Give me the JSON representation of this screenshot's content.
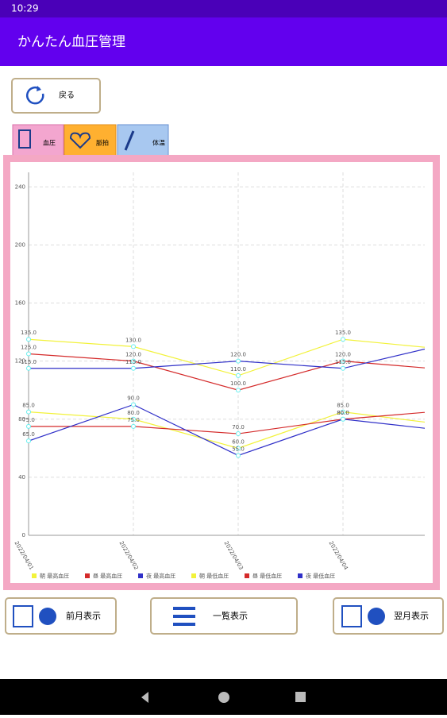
{
  "status_bar": {
    "time": "10:29"
  },
  "app_bar": {
    "title": "かんたん血圧管理"
  },
  "back_button": {
    "label": "戻る"
  },
  "tabs": [
    {
      "label": "血圧"
    },
    {
      "label": "脈拍"
    },
    {
      "label": "体温"
    }
  ],
  "chart_data": {
    "type": "line",
    "categories": [
      "2022/04/01",
      "2022/04/02",
      "2022/04/03",
      "2022/04/04",
      null
    ],
    "ylim": [
      0,
      250
    ],
    "yticks": [
      0,
      40,
      80,
      120,
      160,
      200,
      240
    ],
    "grid": true,
    "legend": "bottom-left",
    "series": [
      {
        "name": "朝 最高血圧",
        "color": "#f2f23a",
        "values": [
          135,
          130,
          110,
          135,
          128
        ],
        "value_labels": [
          "135.0",
          "130.0",
          "110.0",
          "135.0",
          null
        ]
      },
      {
        "name": "昼 最高血圧",
        "color": "#d42a2a",
        "values": [
          125,
          120,
          100,
          120,
          114
        ],
        "value_labels": [
          "125.0",
          "120.0",
          "100.0",
          "120.0",
          null
        ]
      },
      {
        "name": "夜 最高血圧",
        "color": "#3030c8",
        "values": [
          115,
          115,
          120,
          115,
          132
        ],
        "value_labels": [
          "115.0",
          "115.0",
          "120.0",
          "115.0",
          null
        ]
      },
      {
        "name": "朝 最低血圧",
        "color": "#f2f23a",
        "values": [
          85,
          80,
          60,
          85,
          76
        ],
        "value_labels": [
          "85.0",
          "80.0",
          "60.0",
          "85.0",
          null
        ]
      },
      {
        "name": "昼 最低血圧",
        "color": "#d42a2a",
        "values": [
          75,
          75,
          70,
          80,
          86
        ],
        "value_labels": [
          "75.0",
          "75.0",
          "70.0",
          "80.0",
          null
        ]
      },
      {
        "name": "夜 最低血圧",
        "color": "#3030c8",
        "values": [
          65,
          90,
          55,
          80,
          72
        ],
        "value_labels": [
          "65.0",
          "90.0",
          "55.0",
          "80.0",
          null
        ]
      }
    ]
  },
  "bottom_buttons": [
    {
      "label": "前月表示"
    },
    {
      "label": "一覧表示"
    },
    {
      "label": "翌月表示"
    }
  ]
}
